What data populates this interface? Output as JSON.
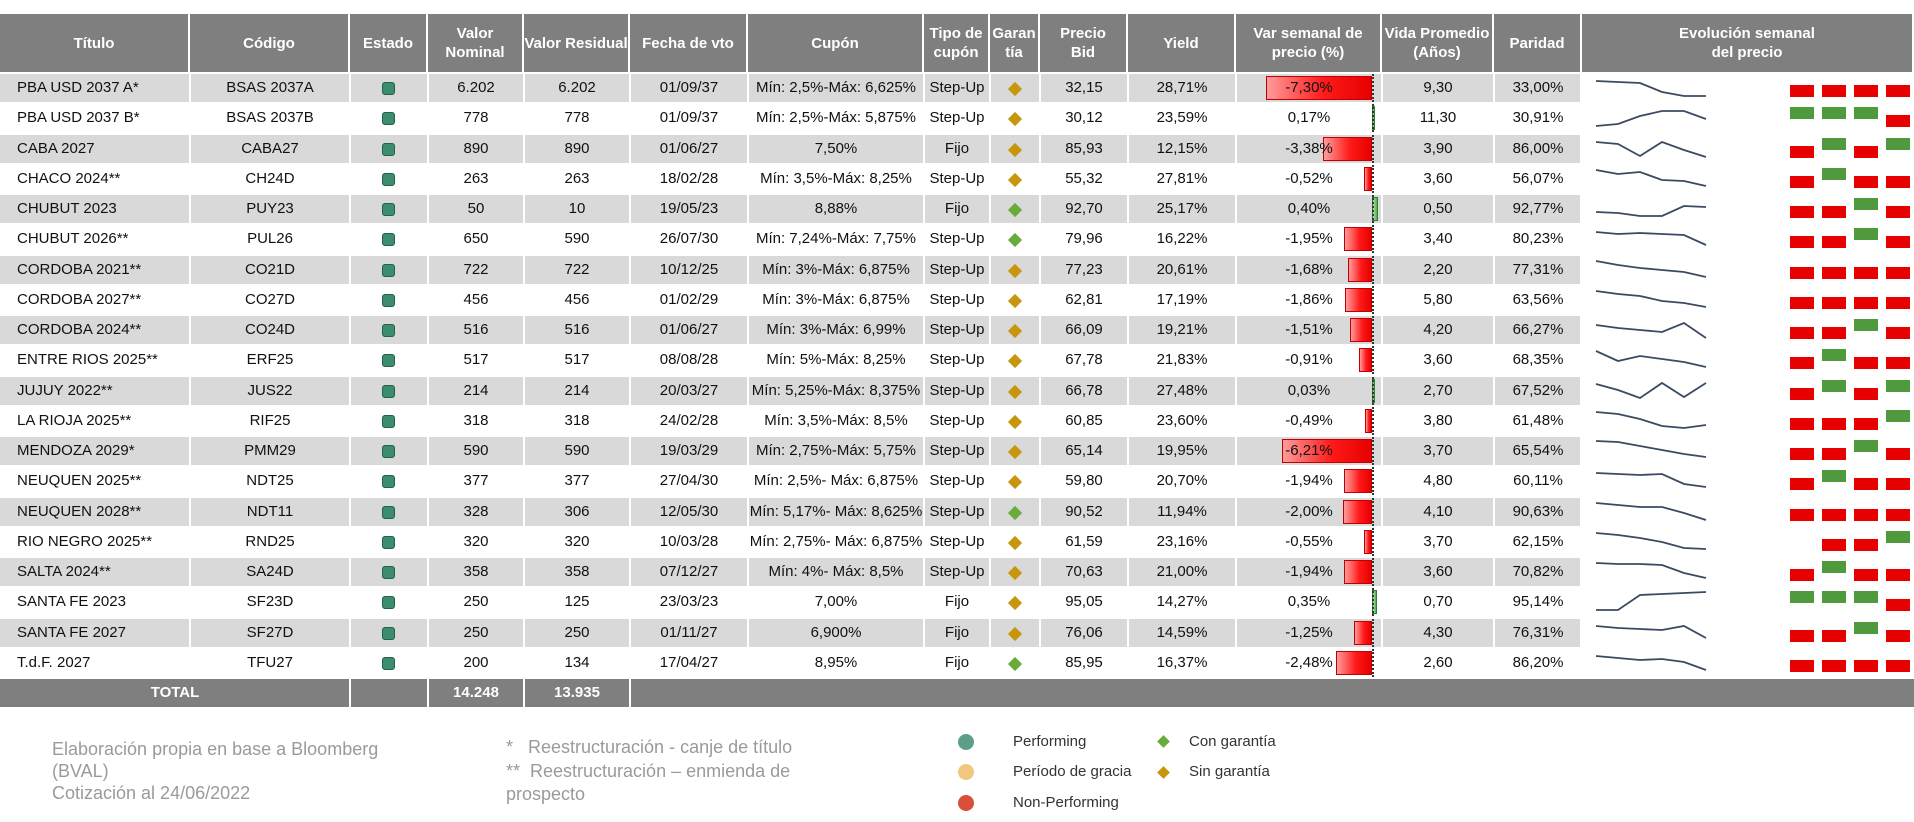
{
  "headers": [
    "Título",
    "Código",
    "Estado",
    "Valor\nNominal",
    "Valor Residual",
    "Fecha de vto",
    "Cupón",
    "Tipo de\ncupón",
    "Garan\ntía",
    "Precio\nBid",
    "Yield",
    "Var semanal de\nprecio (%)",
    "Vida Promedio\n(Años)",
    "Paridad",
    "Evolución semanal\ndel precio"
  ],
  "rows": [
    {
      "titulo": "PBA USD 2037 A*",
      "codigo": "BSAS 2037A",
      "nominal": "6.202",
      "residual": "6.202",
      "vto": "01/09/37",
      "cupon": "Mín: 2,5%-Máx: 6,625%",
      "tipo": "Step-Up",
      "garantia": "sin",
      "bid": "32,15",
      "yield": "28,71%",
      "var": "-7,30%",
      "var_value": -7.3,
      "vida": "9,30",
      "paridad": "33,00%",
      "spark": [
        0.2,
        0.25,
        0.3,
        0.75,
        0.95,
        0.95
      ],
      "heat": [
        "red",
        "red",
        "red",
        "red"
      ]
    },
    {
      "titulo": "PBA USD 2037 B*",
      "codigo": "BSAS 2037B",
      "nominal": "778",
      "residual": "778",
      "vto": "01/09/37",
      "cupon": "Mín: 2,5%-Máx: 5,875%",
      "tipo": "Step-Up",
      "garantia": "sin",
      "bid": "30,12",
      "yield": "23,59%",
      "var": "0,17%",
      "var_value": 0.17,
      "vida": "11,30",
      "paridad": "30,91%",
      "spark": [
        0.95,
        0.85,
        0.45,
        0.2,
        0.2,
        0.6
      ],
      "heat": [
        "green",
        "green",
        "green",
        "red"
      ]
    },
    {
      "titulo": "CABA 2027",
      "codigo": "CABA27",
      "nominal": "890",
      "residual": "890",
      "vto": "01/06/27",
      "cupon": "7,50%",
      "tipo": "Fijo",
      "garantia": "sin",
      "bid": "85,93",
      "yield": "12,15%",
      "var": "-3,38%",
      "var_value": -3.38,
      "vida": "3,90",
      "paridad": "86,00%",
      "spark": [
        0.2,
        0.3,
        0.9,
        0.2,
        0.6,
        0.95
      ],
      "heat": [
        "red",
        "green",
        "red",
        "green"
      ]
    },
    {
      "titulo": "CHACO 2024**",
      "codigo": "CH24D",
      "nominal": "263",
      "residual": "263",
      "vto": "18/02/28",
      "cupon": "Mín: 3,5%-Máx: 8,25%",
      "tipo": "Step-Up",
      "garantia": "sin",
      "bid": "55,32",
      "yield": "27,81%",
      "var": "-0,52%",
      "var_value": -0.52,
      "vida": "3,60",
      "paridad": "56,07%",
      "spark": [
        0.1,
        0.3,
        0.2,
        0.6,
        0.65,
        0.9
      ],
      "heat": [
        "red",
        "green",
        "red",
        "red"
      ]
    },
    {
      "titulo": "CHUBUT 2023",
      "codigo": "PUY23",
      "nominal": "50",
      "residual": "10",
      "vto": "19/05/23",
      "cupon": "8,88%",
      "tipo": "Fijo",
      "garantia": "con",
      "bid": "92,70",
      "yield": "25,17%",
      "var": "0,40%",
      "var_value": 0.4,
      "vida": "0,50",
      "paridad": "92,77%",
      "spark": [
        0.7,
        0.75,
        0.9,
        0.9,
        0.4,
        0.45
      ],
      "heat": [
        "red",
        "red",
        "green",
        "red"
      ]
    },
    {
      "titulo": "CHUBUT 2026**",
      "codigo": "PUL26",
      "nominal": "650",
      "residual": "590",
      "vto": "26/07/30",
      "cupon": "Mín: 7,24%-Máx: 7,75%",
      "tipo": "Step-Up",
      "garantia": "con",
      "bid": "79,96",
      "yield": "16,22%",
      "var": "-1,95%",
      "var_value": -1.95,
      "vida": "3,40",
      "paridad": "80,23%",
      "spark": [
        0.2,
        0.3,
        0.25,
        0.3,
        0.35,
        0.85
      ],
      "heat": [
        "red",
        "red",
        "green",
        "red"
      ]
    },
    {
      "titulo": "CORDOBA 2021**",
      "codigo": "CO21D",
      "nominal": "722",
      "residual": "722",
      "vto": "10/12/25",
      "cupon": "Mín: 3%-Máx: 6,875%",
      "tipo": "Step-Up",
      "garantia": "sin",
      "bid": "77,23",
      "yield": "20,61%",
      "var": "-1,68%",
      "var_value": -1.68,
      "vida": "2,20",
      "paridad": "77,31%",
      "spark": [
        0.1,
        0.3,
        0.45,
        0.55,
        0.65,
        0.9
      ],
      "heat": [
        "red",
        "red",
        "red",
        "red"
      ]
    },
    {
      "titulo": "CORDOBA 2027**",
      "codigo": "CO27D",
      "nominal": "456",
      "residual": "456",
      "vto": "01/02/29",
      "cupon": "Mín: 3%-Máx: 6,875%",
      "tipo": "Step-Up",
      "garantia": "sin",
      "bid": "62,81",
      "yield": "17,19%",
      "var": "-1,86%",
      "var_value": -1.86,
      "vida": "5,80",
      "paridad": "63,56%",
      "spark": [
        0.1,
        0.25,
        0.35,
        0.6,
        0.7,
        0.9
      ],
      "heat": [
        "red",
        "red",
        "red",
        "red"
      ]
    },
    {
      "titulo": "CORDOBA 2024**",
      "codigo": "CO24D",
      "nominal": "516",
      "residual": "516",
      "vto": "01/06/27",
      "cupon": "Mín: 3%-Máx: 6,99%",
      "tipo": "Step-Up",
      "garantia": "sin",
      "bid": "66,09",
      "yield": "19,21%",
      "var": "-1,51%",
      "var_value": -1.51,
      "vida": "4,20",
      "paridad": "66,27%",
      "spark": [
        0.3,
        0.45,
        0.55,
        0.65,
        0.2,
        0.95
      ],
      "heat": [
        "red",
        "red",
        "green",
        "red"
      ]
    },
    {
      "titulo": "ENTRE RIOS 2025**",
      "codigo": "ERF25",
      "nominal": "517",
      "residual": "517",
      "vto": "08/08/28",
      "cupon": "Mín: 5%-Máx: 8,25%",
      "tipo": "Step-Up",
      "garantia": "sin",
      "bid": "67,78",
      "yield": "21,83%",
      "var": "-0,91%",
      "var_value": -0.91,
      "vida": "3,60",
      "paridad": "68,35%",
      "spark": [
        0.1,
        0.6,
        0.35,
        0.5,
        0.65,
        0.9
      ],
      "heat": [
        "red",
        "green",
        "red",
        "red"
      ]
    },
    {
      "titulo": "JUJUY 2022**",
      "codigo": "JUS22",
      "nominal": "214",
      "residual": "214",
      "vto": "20/03/27",
      "cupon": "Mín: 5,25%-Máx: 8,375%",
      "tipo": "Step-Up",
      "garantia": "sin",
      "bid": "66,78",
      "yield": "27,48%",
      "var": "0,03%",
      "var_value": 0.03,
      "vida": "2,70",
      "paridad": "67,52%",
      "spark": [
        0.2,
        0.5,
        0.9,
        0.15,
        0.85,
        0.15
      ],
      "heat": [
        "red",
        "green",
        "red",
        "green"
      ]
    },
    {
      "titulo": "LA RIOJA 2025**",
      "codigo": "RIF25",
      "nominal": "318",
      "residual": "318",
      "vto": "24/02/28",
      "cupon": "Mín: 3,5%-Máx: 8,5%",
      "tipo": "Step-Up",
      "garantia": "sin",
      "bid": "60,85",
      "yield": "23,60%",
      "var": "-0,49%",
      "var_value": -0.49,
      "vida": "3,80",
      "paridad": "61,48%",
      "spark": [
        0.1,
        0.2,
        0.45,
        0.8,
        0.9,
        0.75
      ],
      "heat": [
        "red",
        "red",
        "red",
        "green"
      ]
    },
    {
      "titulo": "MENDOZA 2029*",
      "codigo": "PMM29",
      "nominal": "590",
      "residual": "590",
      "vto": "19/03/29",
      "cupon": "Mín: 2,75%-Máx: 5,75%",
      "tipo": "Step-Up",
      "garantia": "sin",
      "bid": "65,14",
      "yield": "19,95%",
      "var": "-6,21%",
      "var_value": -6.21,
      "vida": "3,70",
      "paridad": "65,54%",
      "spark": [
        0.05,
        0.1,
        0.3,
        0.5,
        0.7,
        0.85
      ],
      "heat": [
        "red",
        "red",
        "green",
        "red"
      ]
    },
    {
      "titulo": "NEUQUEN 2025**",
      "codigo": "NDT25",
      "nominal": "377",
      "residual": "377",
      "vto": "27/04/30",
      "cupon": "Mín: 2,5%- Máx: 6,875%",
      "tipo": "Step-Up",
      "garantia": "sin",
      "bid": "59,80",
      "yield": "20,70%",
      "var": "-1,94%",
      "var_value": -1.94,
      "vida": "4,80",
      "paridad": "60,11%",
      "spark": [
        0.15,
        0.2,
        0.25,
        0.2,
        0.7,
        0.85
      ],
      "heat": [
        "red",
        "green",
        "red",
        "red"
      ]
    },
    {
      "titulo": "NEUQUEN 2028**",
      "codigo": "NDT11",
      "nominal": "328",
      "residual": "306",
      "vto": "12/05/30",
      "cupon": "Mín: 5,17%- Máx: 8,625%",
      "tipo": "Step-Up",
      "garantia": "con",
      "bid": "90,52",
      "yield": "11,94%",
      "var": "-2,00%",
      "var_value": -2.0,
      "vida": "4,10",
      "paridad": "90,63%",
      "spark": [
        0.1,
        0.2,
        0.3,
        0.3,
        0.6,
        0.95
      ],
      "heat": [
        "red",
        "red",
        "red",
        "red"
      ]
    },
    {
      "titulo": "RIO NEGRO 2025**",
      "codigo": "RND25",
      "nominal": "320",
      "residual": "320",
      "vto": "10/03/28",
      "cupon": "Mín: 2,75%- Máx: 6,875%",
      "tipo": "Step-Up",
      "garantia": "sin",
      "bid": "61,59",
      "yield": "23,16%",
      "var": "-0,55%",
      "var_value": -0.55,
      "vida": "3,70",
      "paridad": "62,15%",
      "spark": [
        0.1,
        0.2,
        0.35,
        0.55,
        0.85,
        0.9
      ],
      "heat": [
        "none",
        "red",
        "red",
        "green"
      ]
    },
    {
      "titulo": "SALTA 2024**",
      "codigo": "SA24D",
      "nominal": "358",
      "residual": "358",
      "vto": "07/12/27",
      "cupon": "Mín: 4%- Máx: 8,5%",
      "tipo": "Step-Up",
      "garantia": "sin",
      "bid": "70,63",
      "yield": "21,00%",
      "var": "-1,94%",
      "var_value": -1.94,
      "vida": "3,60",
      "paridad": "70,82%",
      "spark": [
        0.1,
        0.15,
        0.15,
        0.2,
        0.6,
        0.85
      ],
      "heat": [
        "red",
        "green",
        "red",
        "red"
      ]
    },
    {
      "titulo": "SANTA FE 2023",
      "codigo": "SF23D",
      "nominal": "250",
      "residual": "125",
      "vto": "23/03/23",
      "cupon": "7,00%",
      "tipo": "Fijo",
      "garantia": "sin",
      "bid": "95,05",
      "yield": "14,27%",
      "var": "0,35%",
      "var_value": 0.35,
      "vida": "0,70",
      "paridad": "95,14%",
      "spark": [
        0.95,
        0.95,
        0.2,
        0.15,
        0.1,
        0.05
      ],
      "heat": [
        "green",
        "green",
        "green",
        "red"
      ]
    },
    {
      "titulo": "SANTA FE 2027",
      "codigo": "SF27D",
      "nominal": "250",
      "residual": "250",
      "vto": "01/11/27",
      "cupon": "6,900%",
      "tipo": "Fijo",
      "garantia": "sin",
      "bid": "76,06",
      "yield": "14,59%",
      "var": "-1,25%",
      "var_value": -1.25,
      "vida": "4,30",
      "paridad": "76,31%",
      "spark": [
        0.2,
        0.3,
        0.35,
        0.4,
        0.2,
        0.8
      ],
      "heat": [
        "red",
        "red",
        "green",
        "red"
      ]
    },
    {
      "titulo": "T.d.F. 2027",
      "codigo": "TFU27",
      "nominal": "200",
      "residual": "134",
      "vto": "17/04/27",
      "cupon": "8,95%",
      "tipo": "Fijo",
      "garantia": "con",
      "bid": "85,95",
      "yield": "16,37%",
      "var": "-2,48%",
      "var_value": -2.48,
      "vida": "2,60",
      "paridad": "86,20%",
      "spark": [
        0.2,
        0.3,
        0.4,
        0.35,
        0.5,
        0.9
      ],
      "heat": [
        "red",
        "red",
        "red",
        "red"
      ]
    }
  ],
  "total": {
    "label": "TOTAL",
    "nominal": "14.248",
    "residual": "13.935"
  },
  "footer": {
    "source_lines": [
      "Elaboración propia en base a Bloomberg",
      "(BVAL)",
      "Cotización al 24/06/2022"
    ],
    "note1": "*   Reestructuración - canje de título",
    "note2_lines": [
      "**  Reestructuración – enmienda de",
      "prospecto"
    ]
  },
  "legend": {
    "performing": "Performing",
    "gracia": "Período de gracia",
    "non_performing": "Non-Performing",
    "con": "Con garantía",
    "sin": "Sin garantía"
  },
  "colors": {
    "header_gray": "#7f7f7f",
    "row_alt": "#d9d9d9",
    "performing": "#5e9e88",
    "gracia": "#f0c77e",
    "non_performing": "#d9503a",
    "con": "#6aac3c",
    "sin": "#c8960c",
    "heat_red": "#e60000",
    "heat_green": "#4f9a3c"
  }
}
